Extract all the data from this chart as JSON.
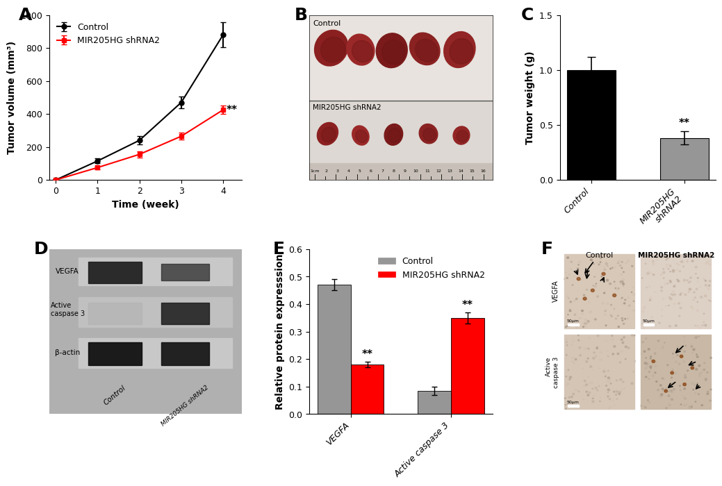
{
  "panel_A": {
    "x": [
      0,
      1,
      2,
      3,
      4
    ],
    "control_y": [
      0,
      115,
      240,
      470,
      880
    ],
    "control_err": [
      0,
      15,
      25,
      35,
      75
    ],
    "shrna_y": [
      0,
      75,
      155,
      265,
      425
    ],
    "shrna_err": [
      0,
      10,
      20,
      20,
      25
    ],
    "xlabel": "Time (week)",
    "ylabel": "Tumor volume (mm³)",
    "ylim": [
      0,
      1000
    ],
    "yticks": [
      0,
      200,
      400,
      600,
      800,
      1000
    ],
    "control_color": "#000000",
    "shrna_color": "#ff0000",
    "control_label": "Control",
    "shrna_label": "MIR205HG shRNA2"
  },
  "panel_C": {
    "categories": [
      "Control",
      "MIR205HG\nshRNA2"
    ],
    "values": [
      1.0,
      0.38
    ],
    "errors": [
      0.12,
      0.06
    ],
    "colors": [
      "#000000",
      "#969696"
    ],
    "ylabel": "Tumor weight (g)",
    "ylim": [
      0,
      1.5
    ],
    "yticks": [
      0.0,
      0.5,
      1.0,
      1.5
    ]
  },
  "panel_E": {
    "categories": [
      "VEGFA",
      "Active caspase 3"
    ],
    "control_values": [
      0.47,
      0.085
    ],
    "shrna_values": [
      0.18,
      0.35
    ],
    "control_errors": [
      0.02,
      0.015
    ],
    "shrna_errors": [
      0.01,
      0.02
    ],
    "control_color": "#969696",
    "shrna_color": "#ff0000",
    "control_label": "Control",
    "shrna_label": "MIR205HG shRNA2",
    "ylabel": "Relative protein expresssion",
    "ylim": [
      0,
      0.6
    ],
    "yticks": [
      0.0,
      0.1,
      0.2,
      0.3,
      0.4,
      0.5,
      0.6
    ]
  },
  "panel_labels_fontsize": 18,
  "axis_label_fontsize": 10,
  "tick_fontsize": 9,
  "legend_fontsize": 9,
  "annotation_fontsize": 11,
  "background_color": "#ffffff",
  "panel_B_bg": "#e8e4e0",
  "panel_D_bg": "#c0c0c0",
  "panel_F_bg": "#d8c8b0"
}
